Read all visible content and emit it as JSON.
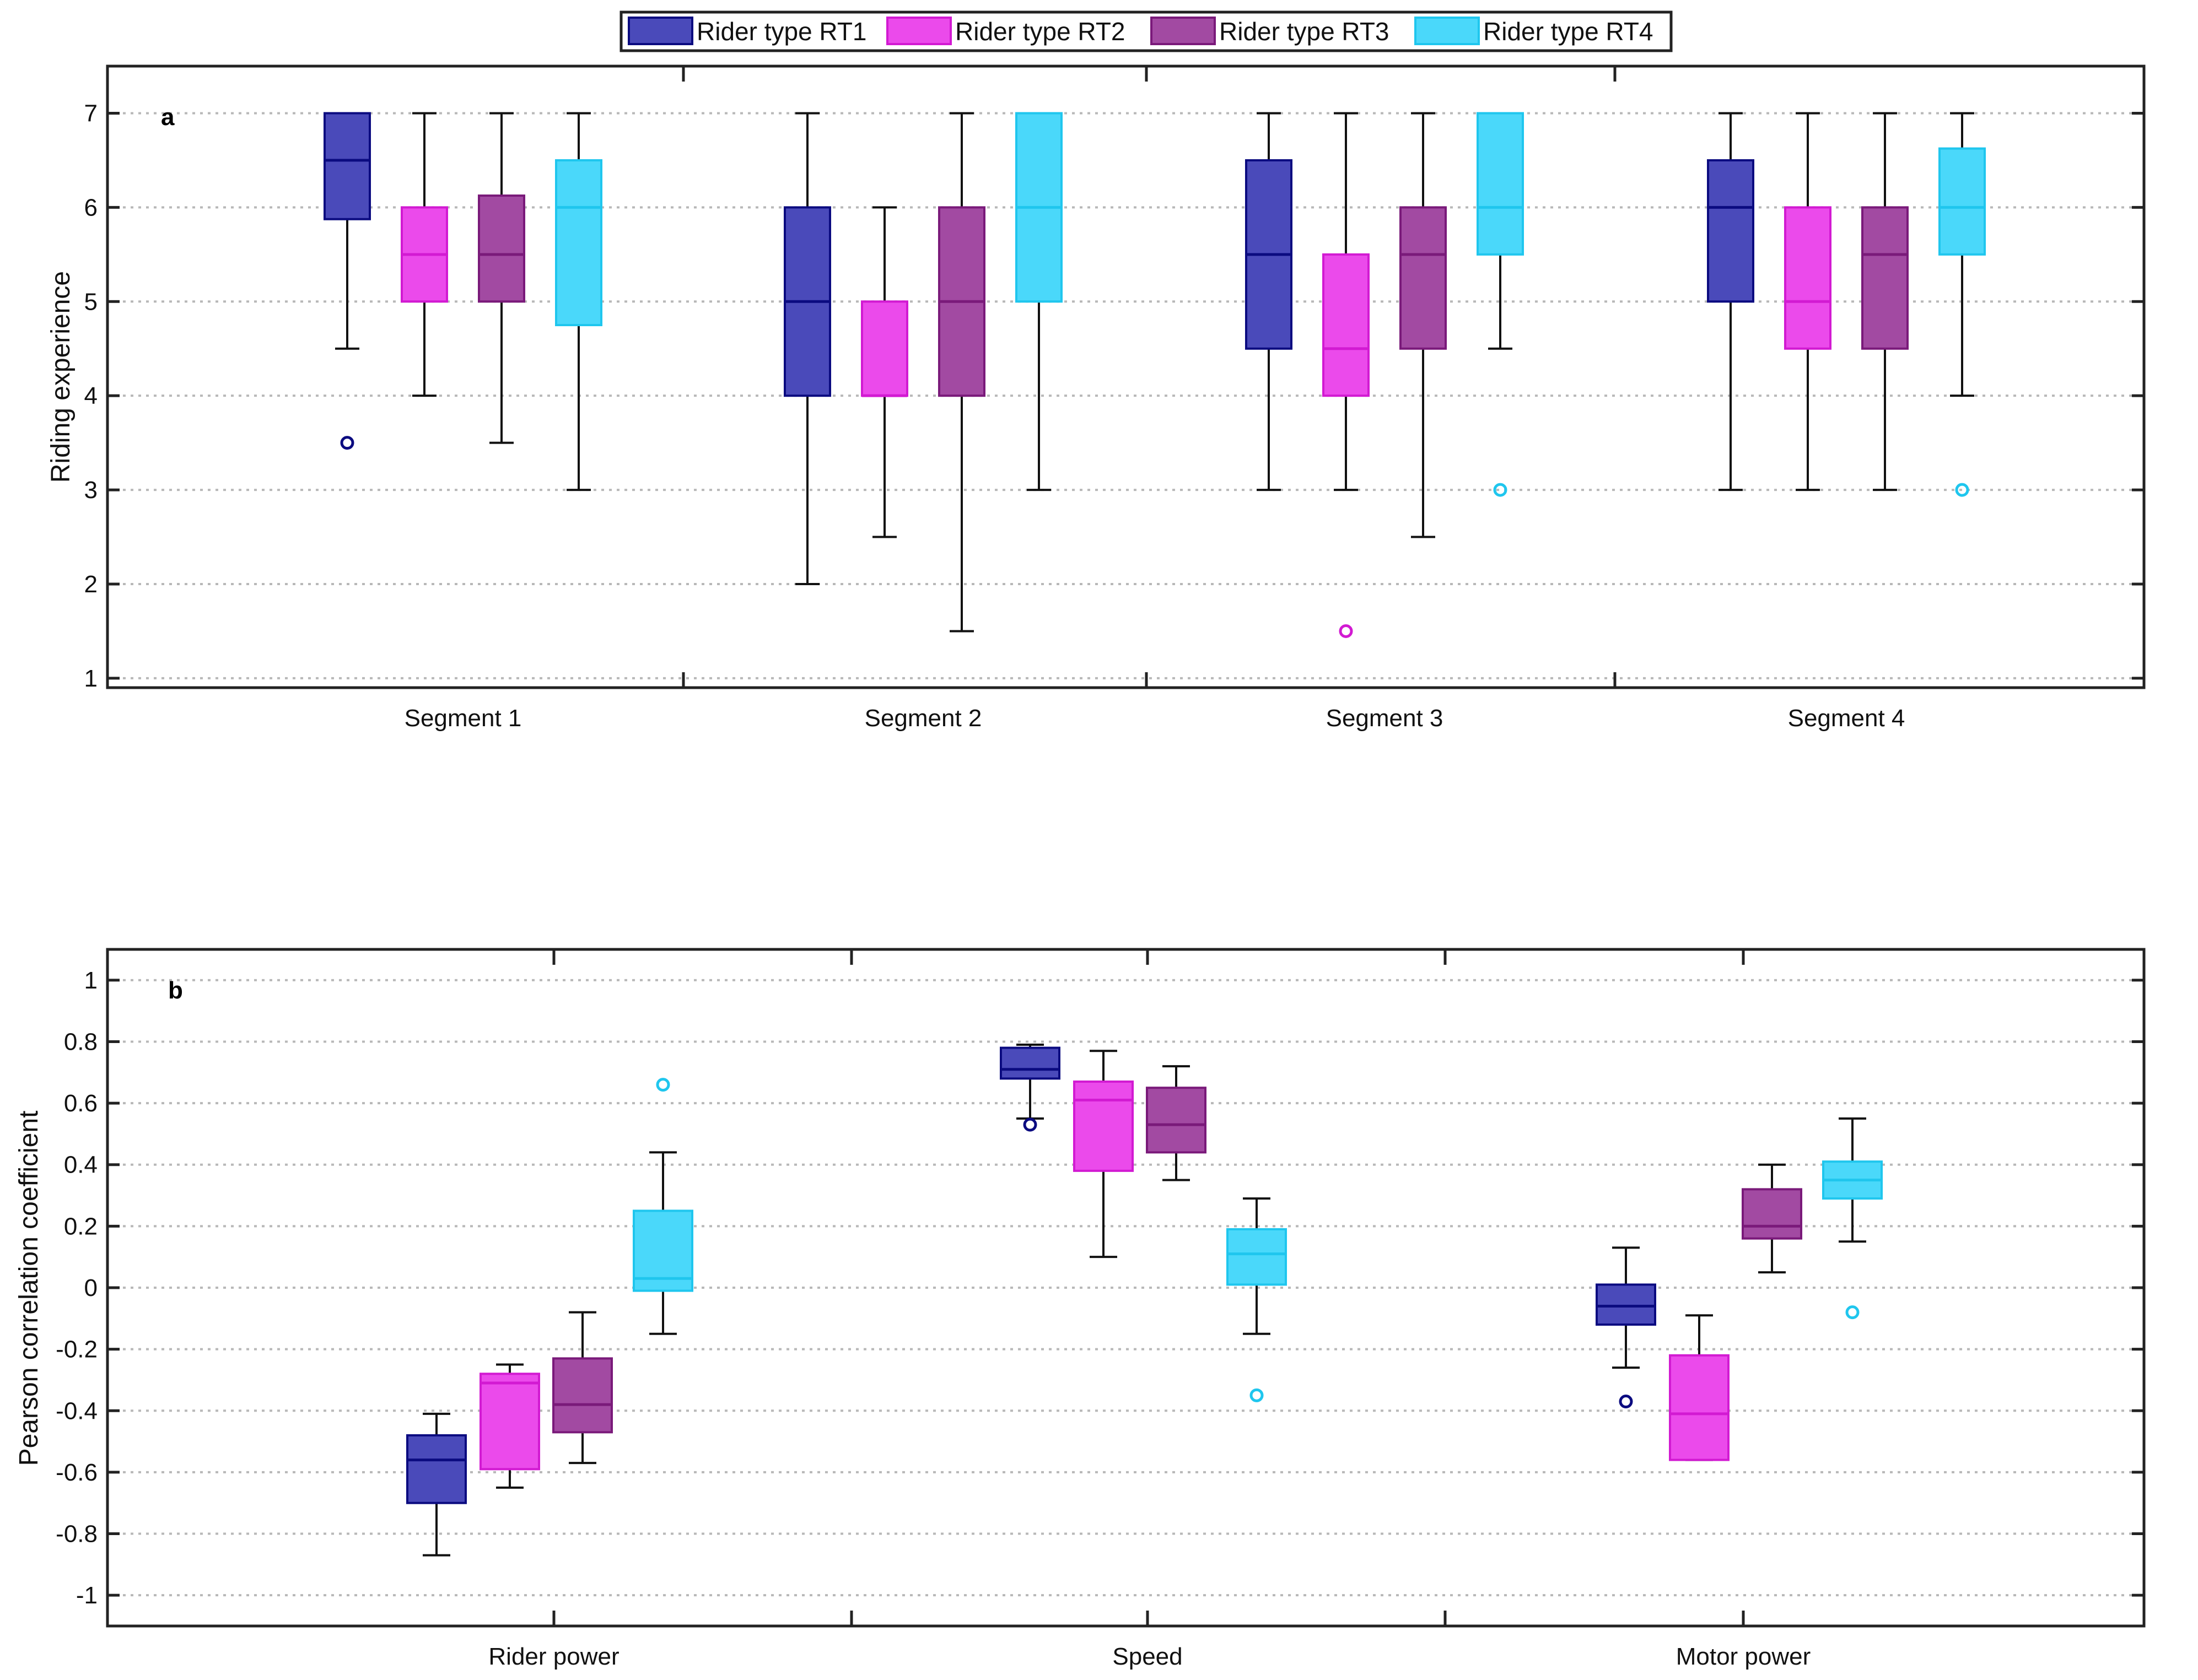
{
  "legend": {
    "items": [
      {
        "label": "Rider type RT1",
        "fill": "#4A4ABA",
        "stroke": "#0B0B80"
      },
      {
        "label": "Rider type RT2",
        "fill": "#EB4AEB",
        "stroke": "#D21AD2"
      },
      {
        "label": "Rider type RT3",
        "fill": "#A24AA2",
        "stroke": "#7A1A7A"
      },
      {
        "label": "Rider type RT4",
        "fill": "#4AD8FA",
        "stroke": "#1FC6EE"
      }
    ]
  },
  "chart_data": [
    {
      "type": "box",
      "panel_label": "a",
      "ylabel": "Riding experience",
      "ylim": [
        0.9,
        7.5
      ],
      "yticks": [
        1,
        2,
        3,
        4,
        5,
        6,
        7
      ],
      "ytick_labels": [
        "1",
        "2",
        "3",
        "4",
        "5",
        "6",
        "7"
      ],
      "grid": "horizontal dotted",
      "categories": [
        "Segment 1",
        "Segment 2",
        "Segment 3",
        "Segment 4"
      ],
      "series": [
        {
          "name": "Rider type RT1",
          "boxes": [
            {
              "wlow": 4.5,
              "q1": 5.875,
              "median": 6.5,
              "q3": 7,
              "whigh": 7,
              "outliers": [
                3.5
              ]
            },
            {
              "wlow": 2,
              "q1": 4,
              "median": 5,
              "q3": 6,
              "whigh": 7,
              "outliers": []
            },
            {
              "wlow": 3,
              "q1": 4.5,
              "median": 5.5,
              "q3": 6.5,
              "whigh": 7,
              "outliers": []
            },
            {
              "wlow": 3,
              "q1": 5,
              "median": 6,
              "q3": 6.5,
              "whigh": 7,
              "outliers": []
            }
          ]
        },
        {
          "name": "Rider type RT2",
          "boxes": [
            {
              "wlow": 4,
              "q1": 5,
              "median": 5.5,
              "q3": 6,
              "whigh": 7,
              "outliers": []
            },
            {
              "wlow": 2.5,
              "q1": 4,
              "median": 4,
              "q3": 5,
              "whigh": 6,
              "outliers": []
            },
            {
              "wlow": 3,
              "q1": 4,
              "median": 4.5,
              "q3": 5.5,
              "whigh": 7,
              "outliers": [
                1.5
              ]
            },
            {
              "wlow": 3,
              "q1": 4.5,
              "median": 5,
              "q3": 6,
              "whigh": 7,
              "outliers": []
            }
          ]
        },
        {
          "name": "Rider type RT3",
          "boxes": [
            {
              "wlow": 3.5,
              "q1": 5,
              "median": 5.5,
              "q3": 6.125,
              "whigh": 7,
              "outliers": []
            },
            {
              "wlow": 1.5,
              "q1": 4,
              "median": 5,
              "q3": 6,
              "whigh": 7,
              "outliers": []
            },
            {
              "wlow": 2.5,
              "q1": 4.5,
              "median": 5.5,
              "q3": 6,
              "whigh": 7,
              "outliers": []
            },
            {
              "wlow": 3,
              "q1": 4.5,
              "median": 5.5,
              "q3": 6,
              "whigh": 7,
              "outliers": []
            }
          ]
        },
        {
          "name": "Rider type RT4",
          "boxes": [
            {
              "wlow": 3,
              "q1": 4.75,
              "median": 6,
              "q3": 6.5,
              "whigh": 7,
              "outliers": []
            },
            {
              "wlow": 3,
              "q1": 5,
              "median": 6,
              "q3": 7,
              "whigh": 7,
              "outliers": []
            },
            {
              "wlow": 4.5,
              "q1": 5.5,
              "median": 6,
              "q3": 7,
              "whigh": 7,
              "outliers": [
                3
              ]
            },
            {
              "wlow": 4,
              "q1": 5.5,
              "median": 6,
              "q3": 6.625,
              "whigh": 7,
              "outliers": [
                3
              ]
            }
          ]
        }
      ]
    },
    {
      "type": "box",
      "panel_label": "b",
      "ylabel": "Pearson correlation coefficient",
      "ylim": [
        -1.1,
        1.1
      ],
      "yticks": [
        -1,
        -0.8,
        -0.6,
        -0.4,
        -0.2,
        0,
        0.2,
        0.4,
        0.6,
        0.8,
        1
      ],
      "ytick_labels": [
        "-1",
        "-0.8",
        "-0.6",
        "-0.4",
        "-0.2",
        "0",
        "0.2",
        "0.4",
        "0.6",
        "0.8",
        "1"
      ],
      "grid": "horizontal dotted",
      "categories": [
        "Rider power",
        "Speed",
        "Motor power"
      ],
      "series": [
        {
          "name": "Rider type RT1",
          "boxes": [
            {
              "wlow": -0.87,
              "q1": -0.7,
              "median": -0.56,
              "q3": -0.48,
              "whigh": -0.41,
              "outliers": []
            },
            {
              "wlow": 0.55,
              "q1": 0.68,
              "median": 0.71,
              "q3": 0.78,
              "whigh": 0.79,
              "outliers": [
                0.53
              ]
            },
            {
              "wlow": -0.26,
              "q1": -0.12,
              "median": -0.06,
              "q3": 0.01,
              "whigh": 0.13,
              "outliers": [
                -0.37
              ]
            }
          ]
        },
        {
          "name": "Rider type RT2",
          "boxes": [
            {
              "wlow": -0.65,
              "q1": -0.59,
              "median": -0.31,
              "q3": -0.28,
              "whigh": -0.25,
              "outliers": []
            },
            {
              "wlow": 0.1,
              "q1": 0.38,
              "median": 0.61,
              "q3": 0.67,
              "whigh": 0.77,
              "outliers": []
            },
            {
              "wlow": -0.56,
              "q1": -0.56,
              "median": -0.41,
              "q3": -0.22,
              "whigh": -0.09,
              "outliers": []
            }
          ]
        },
        {
          "name": "Rider type RT3",
          "boxes": [
            {
              "wlow": -0.57,
              "q1": -0.47,
              "median": -0.38,
              "q3": -0.23,
              "whigh": -0.08,
              "outliers": []
            },
            {
              "wlow": 0.35,
              "q1": 0.44,
              "median": 0.53,
              "q3": 0.65,
              "whigh": 0.72,
              "outliers": []
            },
            {
              "wlow": 0.05,
              "q1": 0.16,
              "median": 0.2,
              "q3": 0.32,
              "whigh": 0.4,
              "outliers": []
            }
          ]
        },
        {
          "name": "Rider type RT4",
          "boxes": [
            {
              "wlow": -0.15,
              "q1": -0.01,
              "median": 0.03,
              "q3": 0.25,
              "whigh": 0.44,
              "outliers": [
                0.66
              ]
            },
            {
              "wlow": -0.15,
              "q1": 0.01,
              "median": 0.11,
              "q3": 0.19,
              "whigh": 0.29,
              "outliers": [
                -0.35
              ]
            },
            {
              "wlow": 0.15,
              "q1": 0.29,
              "median": 0.35,
              "q3": 0.41,
              "whigh": 0.55,
              "outliers": [
                -0.08
              ]
            }
          ]
        }
      ]
    }
  ]
}
